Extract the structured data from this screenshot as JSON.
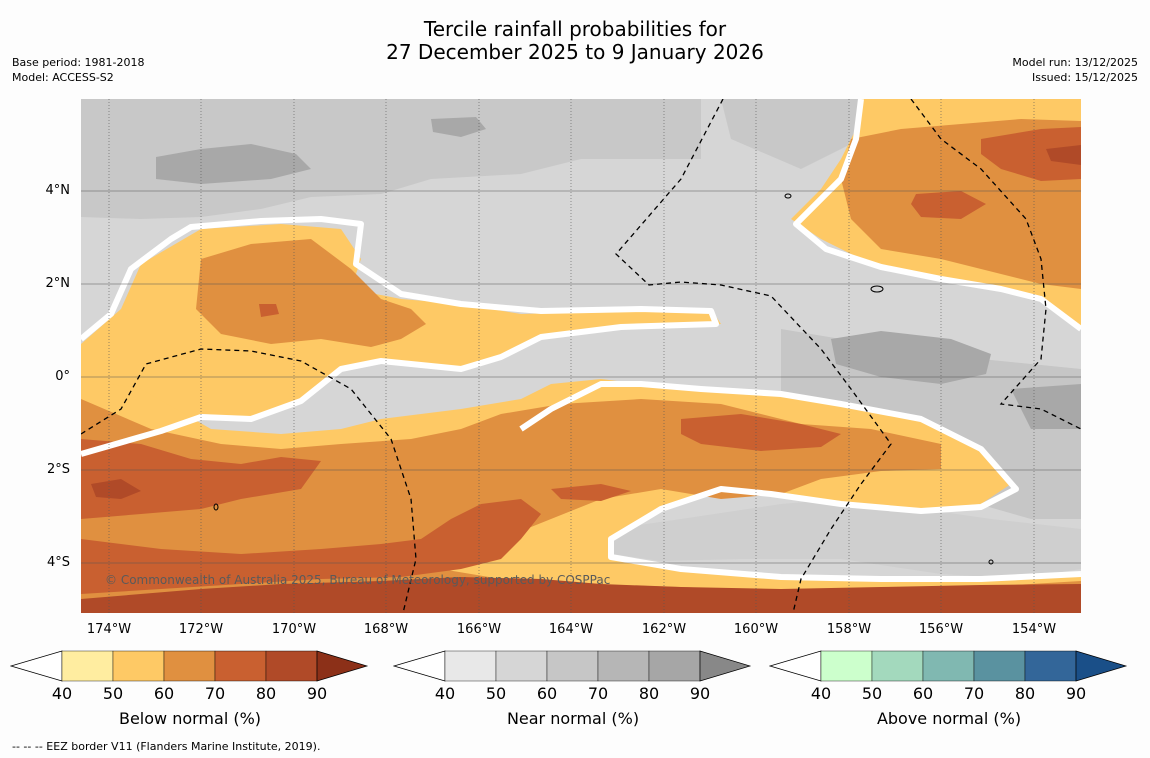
{
  "header": {
    "title_line1": "Tercile rainfall probabilities for",
    "title_line2": "27 December 2025 to 9 January 2026",
    "base_period": "Base period: 1981-2018",
    "model": "Model: ACCESS-S2",
    "model_run": "Model run: 13/12/2025",
    "issued": "Issued: 15/12/2025"
  },
  "map": {
    "lat_labels": [
      "4°N",
      "2°N",
      "0°",
      "2°S",
      "4°S"
    ],
    "lon_labels": [
      "174°W",
      "172°W",
      "170°W",
      "168°W",
      "166°W",
      "164°W",
      "162°W",
      "160°W",
      "158°W",
      "156°W",
      "154°W"
    ],
    "copyright": "© Commonwealth of Australia 2025, Bureau of Meteorology, supported by COSPPac",
    "background_color": "#d6d6d6"
  },
  "colorbars": [
    {
      "label": "Below normal (%)",
      "ticks": [
        "40",
        "50",
        "60",
        "70",
        "80",
        "90"
      ],
      "colors": [
        "#ffeda0",
        "#fec965",
        "#e09040",
        "#c96030",
        "#b04a28",
        "#8c3018"
      ]
    },
    {
      "label": "Near normal (%)",
      "ticks": [
        "40",
        "50",
        "60",
        "70",
        "80",
        "90"
      ],
      "colors": [
        "#e8e8e8",
        "#d6d6d6",
        "#c6c6c6",
        "#b6b6b6",
        "#a6a6a6",
        "#888888"
      ]
    },
    {
      "label": "Above normal (%)",
      "ticks": [
        "40",
        "50",
        "60",
        "70",
        "80",
        "90"
      ],
      "colors": [
        "#ccffcc",
        "#a3d9bd",
        "#80b8b1",
        "#5a92a0",
        "#336699",
        "#1a4f88"
      ]
    }
  ],
  "footer": {
    "legend": "--  --  -- EEZ border V11 (Flanders Marine Institute, 2019)."
  }
}
